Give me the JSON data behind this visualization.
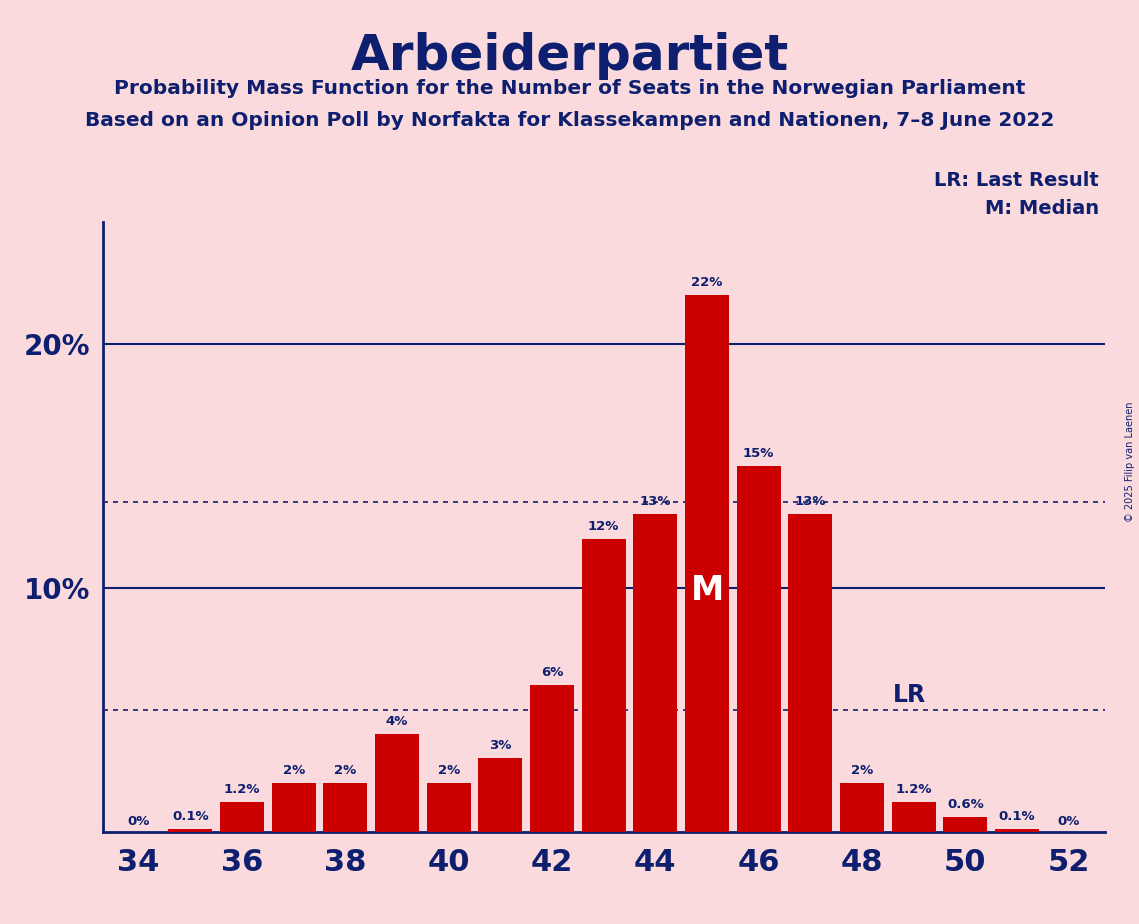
{
  "title": "Arbeiderpartiet",
  "subtitle1": "Probability Mass Function for the Number of Seats in the Norwegian Parliament",
  "subtitle2": "Based on an Opinion Poll by Norfakta for Klassekampen and Nationen, 7–8 June 2022",
  "copyright": "© 2025 Filip van Laenen",
  "seats": [
    34,
    35,
    36,
    37,
    38,
    39,
    40,
    41,
    42,
    43,
    44,
    45,
    46,
    47,
    48,
    49,
    50,
    51,
    52
  ],
  "values": [
    0.0,
    0.1,
    1.2,
    2.0,
    2.0,
    4.0,
    2.0,
    3.0,
    6.0,
    12.0,
    13.0,
    22.0,
    15.0,
    13.0,
    2.0,
    1.2,
    0.6,
    0.1,
    0.0
  ],
  "labels": [
    "0%",
    "0.1%",
    "1.2%",
    "2%",
    "2%",
    "4%",
    "2%",
    "3%",
    "6%",
    "12%",
    "13%",
    "22%",
    "15%",
    "13%",
    "2%",
    "1.2%",
    "0.6%",
    "0.1%",
    "0%"
  ],
  "bar_color": "#cc0000",
  "background_color": "#fadadd",
  "title_color": "#0d1f6e",
  "axis_color": "#0d1f6e",
  "label_color": "#0d1f6e",
  "median_seat": 45,
  "lr_seat": 48,
  "lr_value": 5.0,
  "ylim": [
    0,
    25
  ],
  "xticks": [
    34,
    36,
    38,
    40,
    42,
    44,
    46,
    48,
    50,
    52
  ],
  "legend_lr": "LR: Last Result",
  "legend_m": "M: Median",
  "dotted_lines": [
    5.0,
    13.5
  ],
  "solid_lines": [
    10.0,
    20.0
  ]
}
